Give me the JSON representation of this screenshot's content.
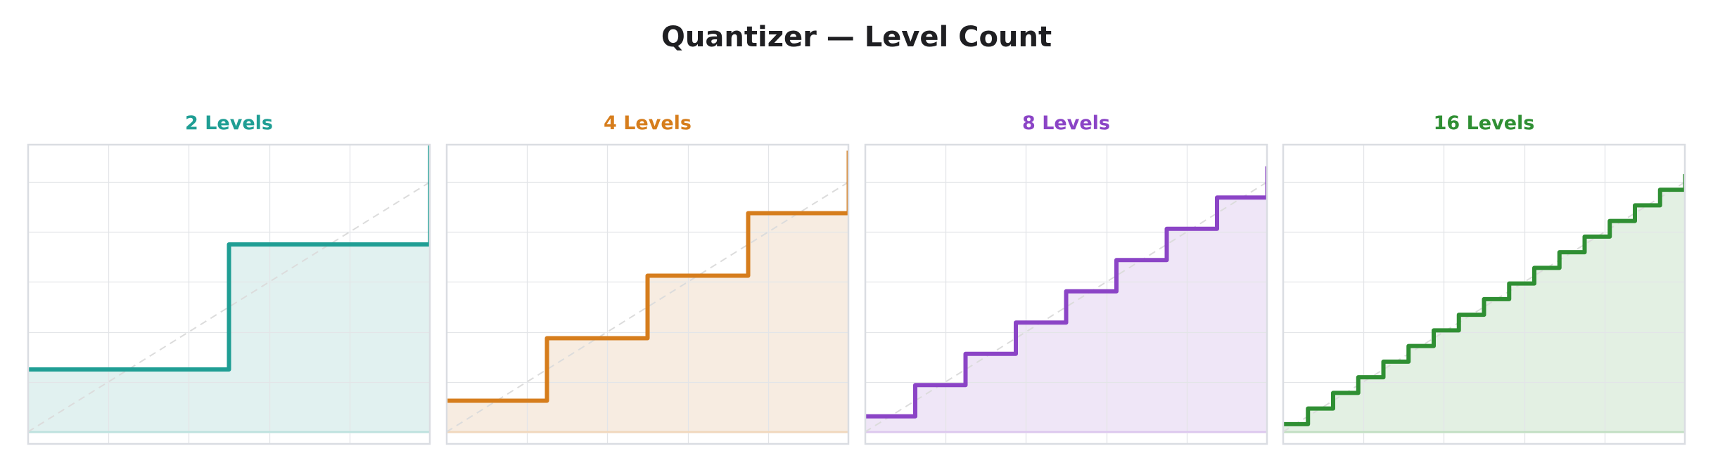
{
  "title": "Quantizer — Level Count",
  "panels": [
    {
      "label": "2 Levels",
      "levels": 2,
      "color": "#1f9e94",
      "fill": "#e1f1f0"
    },
    {
      "label": "4 Levels",
      "levels": 4,
      "color": "#d67d1c",
      "fill": "#f7ece1"
    },
    {
      "label": "8 Levels",
      "levels": 8,
      "color": "#8b44c6",
      "fill": "#efe6f7"
    },
    {
      "label": "16 Levels",
      "levels": 16,
      "color": "#2f8f33",
      "fill": "#e3f0e3"
    }
  ],
  "chart_data": [
    {
      "type": "line",
      "title": "2 Levels",
      "subtitle": "Quantizer — Level Count",
      "step": true,
      "x": [
        0,
        0.5,
        1.0
      ],
      "values": [
        0.25,
        0.75,
        1.25
      ],
      "reference_line": "y = x (dashed)",
      "xlim": [
        0,
        1
      ],
      "ylim": [
        -0.03,
        1.15
      ],
      "grid": true,
      "legend": "none",
      "fill_under": true
    },
    {
      "type": "line",
      "title": "4 Levels",
      "step": true,
      "x": [
        0,
        0.25,
        0.5,
        0.75,
        1.0
      ],
      "values": [
        0.125,
        0.375,
        0.625,
        0.875,
        1.125
      ],
      "reference_line": "y = x (dashed)",
      "xlim": [
        0,
        1
      ],
      "ylim": [
        -0.03,
        1.15
      ],
      "grid": true,
      "legend": "none",
      "fill_under": true
    },
    {
      "type": "line",
      "title": "8 Levels",
      "step": true,
      "x": [
        0,
        0.125,
        0.25,
        0.375,
        0.5,
        0.625,
        0.75,
        0.875,
        1.0
      ],
      "values": [
        0.0625,
        0.1875,
        0.3125,
        0.4375,
        0.5625,
        0.6875,
        0.8125,
        0.9375,
        1.0625
      ],
      "reference_line": "y = x (dashed)",
      "xlim": [
        0,
        1
      ],
      "ylim": [
        -0.03,
        1.15
      ],
      "grid": true,
      "legend": "none",
      "fill_under": true
    },
    {
      "type": "line",
      "title": "16 Levels",
      "step": true,
      "x": [
        0,
        0.0625,
        0.125,
        0.1875,
        0.25,
        0.3125,
        0.375,
        0.4375,
        0.5,
        0.5625,
        0.625,
        0.6875,
        0.75,
        0.8125,
        0.875,
        0.9375,
        1.0
      ],
      "values": [
        0.03125,
        0.09375,
        0.15625,
        0.21875,
        0.28125,
        0.34375,
        0.40625,
        0.46875,
        0.53125,
        0.59375,
        0.65625,
        0.71875,
        0.78125,
        0.84375,
        0.90625,
        0.96875,
        1.03125
      ],
      "reference_line": "y = x (dashed)",
      "xlim": [
        0,
        1
      ],
      "ylim": [
        -0.03,
        1.15
      ],
      "grid": true,
      "legend": "none",
      "fill_under": true
    }
  ]
}
